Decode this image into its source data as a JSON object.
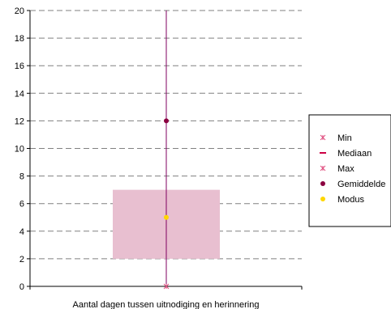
{
  "chart_data": {
    "type": "box",
    "title": "",
    "xlabel": "Aantal dagen tussen uitnodiging en herinnering",
    "ylabel": "",
    "ylim": [
      0,
      20
    ],
    "yticks": [
      0,
      2,
      4,
      6,
      8,
      10,
      12,
      14,
      16,
      18,
      20
    ],
    "grid": true,
    "legend_position": "right",
    "box": {
      "q1": 2,
      "q3": 7,
      "color": "#e8bfd0"
    },
    "whisker": {
      "low": 0,
      "high": 20,
      "color": "#800060"
    },
    "markers": [
      {
        "name": "Min",
        "value": 0,
        "symbol": "asterisk",
        "color": "#e05080"
      },
      {
        "name": "Mediaan",
        "value": null,
        "symbol": "dash",
        "color": "#cc0044"
      },
      {
        "name": "Max",
        "value": null,
        "symbol": "asterisk",
        "color": "#e05080"
      },
      {
        "name": "Gemiddelde",
        "value": 12,
        "symbol": "circle",
        "color": "#8b0040"
      },
      {
        "name": "Modus",
        "value": 5,
        "symbol": "circle",
        "color": "#ffd700"
      }
    ]
  }
}
